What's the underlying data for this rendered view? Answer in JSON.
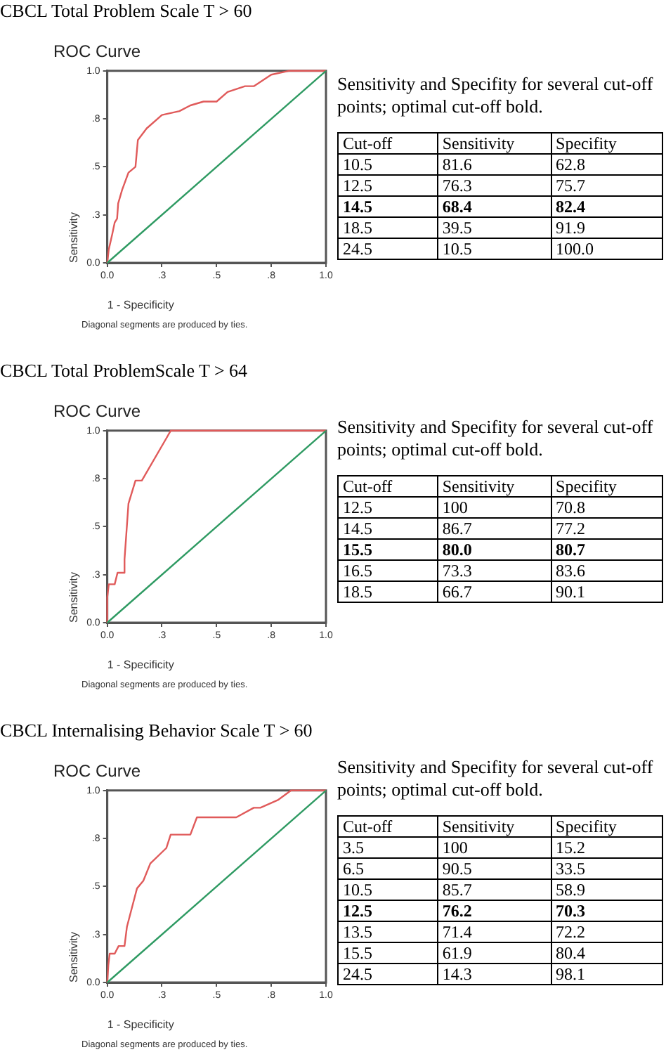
{
  "chart_data": [
    {
      "type": "line",
      "title": "CBCL Total Problem Scale T > 60",
      "subtitle": "ROC Curve",
      "xlabel": "1 - Specificity",
      "ylabel": "Sensitivity",
      "xlim": [
        0,
        1
      ],
      "ylim": [
        0,
        1
      ],
      "xticks": [
        {
          "value": 0,
          "label": "0.0"
        },
        {
          "value": 0.25,
          "label": ".3"
        },
        {
          "value": 0.5,
          "label": ".5"
        },
        {
          "value": 0.75,
          "label": ".8"
        },
        {
          "value": 1,
          "label": "1.0"
        }
      ],
      "yticks": [
        {
          "value": 0,
          "label": "0.0"
        },
        {
          "value": 0.25,
          "label": ".3"
        },
        {
          "value": 0.5,
          "label": ".5"
        },
        {
          "value": 0.75,
          "label": ".8"
        },
        {
          "value": 1,
          "label": "1.0"
        }
      ],
      "grid": false,
      "legend": false,
      "marker": "none",
      "line_style": "solid",
      "series": [
        {
          "color": "#e05a5a",
          "x": [
            0,
            0.007,
            0.023,
            0.034,
            0.045,
            0.05,
            0.068,
            0.097,
            0.129,
            0.14,
            0.18,
            0.25,
            0.33,
            0.38,
            0.44,
            0.5,
            0.55,
            0.63,
            0.67,
            0.75,
            0.83,
            1
          ],
          "values": [
            0,
            0.07,
            0.15,
            0.21,
            0.23,
            0.31,
            0.38,
            0.47,
            0.5,
            0.64,
            0.7,
            0.77,
            0.79,
            0.82,
            0.84,
            0.84,
            0.89,
            0.92,
            0.92,
            0.98,
            1,
            1
          ]
        },
        {
          "color": "#2e9a62",
          "x": [
            0,
            1
          ],
          "values": [
            0,
            1
          ]
        }
      ],
      "annotations": [
        "Diagonal segments are produced by ties.",
        "Sensitivity and Specifity for several cut-off points; optimal  cut-off bold.",
        "Cut-off",
        "Sensitivity",
        "Specifity",
        "10.5",
        "81.6",
        "62.8",
        "12.5",
        "76.3",
        "75.7",
        "14.5",
        "68.4",
        "82.4",
        "18.5",
        "39.5",
        "91.9",
        "24.5",
        "10.5",
        "100.0"
      ]
    },
    {
      "type": "line",
      "title": "CBCL Total ProblemScale T > 64",
      "subtitle": "ROC Curve",
      "xlabel": "1 - Specificity",
      "ylabel": "Sensitivity",
      "xlim": [
        0,
        1
      ],
      "ylim": [
        0,
        1
      ],
      "xticks": [
        {
          "value": 0,
          "label": "0.0"
        },
        {
          "value": 0.25,
          "label": ".3"
        },
        {
          "value": 0.5,
          "label": ".5"
        },
        {
          "value": 0.75,
          "label": ".8"
        },
        {
          "value": 1,
          "label": "1.0"
        }
      ],
      "yticks": [
        {
          "value": 0,
          "label": "0.0"
        },
        {
          "value": 0.25,
          "label": ".3"
        },
        {
          "value": 0.5,
          "label": ".5"
        },
        {
          "value": 0.75,
          "label": ".8"
        },
        {
          "value": 1,
          "label": "1.0"
        }
      ],
      "grid": false,
      "legend": false,
      "marker": "none",
      "line_style": "solid",
      "series": [
        {
          "color": "#e05a5a",
          "x": [
            0,
            0,
            0.007,
            0.034,
            0.047,
            0.075,
            0.079,
            0.097,
            0.129,
            0.158,
            0.27,
            0.29,
            1
          ],
          "values": [
            0,
            0.13,
            0.2,
            0.2,
            0.26,
            0.26,
            0.33,
            0.62,
            0.74,
            0.74,
            0.96,
            1,
            1
          ]
        },
        {
          "color": "#2e9a62",
          "x": [
            0,
            1
          ],
          "values": [
            0,
            1
          ]
        }
      ],
      "annotations": [
        "Diagonal segments are produced by ties.",
        "Sensitivity and Specifity for several cut-off points; optimal  cut-off bold.",
        "Cut-off",
        "Sensitivity",
        "Specifity",
        "12.5",
        "100",
        "70.8",
        "14.5",
        "86.7",
        "77.2",
        "15.5",
        "80.0",
        "80.7",
        "16.5",
        "73.3",
        "83.6",
        "18.5",
        "66.7",
        "90.1"
      ]
    },
    {
      "type": "line",
      "title": "CBCL Internalising Behavior Scale  T > 60",
      "subtitle": "ROC Curve",
      "xlabel": "1 - Specificity",
      "ylabel": "Sensitivity",
      "xlim": [
        0,
        1
      ],
      "ylim": [
        0,
        1
      ],
      "xticks": [
        {
          "value": 0,
          "label": "0.0"
        },
        {
          "value": 0.25,
          "label": ".3"
        },
        {
          "value": 0.5,
          "label": ".5"
        },
        {
          "value": 0.75,
          "label": ".8"
        },
        {
          "value": 1,
          "label": "1.0"
        }
      ],
      "yticks": [
        {
          "value": 0,
          "label": "0.0"
        },
        {
          "value": 0.25,
          "label": ".3"
        },
        {
          "value": 0.5,
          "label": ".5"
        },
        {
          "value": 0.75,
          "label": ".8"
        },
        {
          "value": 1,
          "label": "1.0"
        }
      ],
      "grid": false,
      "legend": false,
      "marker": "none",
      "line_style": "solid",
      "series": [
        {
          "color": "#e05a5a",
          "x": [
            0,
            0.005,
            0.011,
            0.034,
            0.052,
            0.079,
            0.09,
            0.136,
            0.165,
            0.197,
            0.27,
            0.29,
            0.38,
            0.41,
            0.59,
            0.67,
            0.7,
            0.78,
            0.84,
            1
          ],
          "values": [
            0,
            0.09,
            0.15,
            0.15,
            0.19,
            0.19,
            0.29,
            0.49,
            0.53,
            0.62,
            0.7,
            0.77,
            0.77,
            0.86,
            0.86,
            0.91,
            0.91,
            0.95,
            1,
            1
          ]
        },
        {
          "color": "#2e9a62",
          "x": [
            0,
            1
          ],
          "values": [
            0,
            1
          ]
        }
      ],
      "annotations": [
        "Diagonal segments are produced by ties.",
        "Sensitivity and Specifity for several cut-off points; optimal  cut-off bold.",
        "Cut-off",
        "Sensitivity",
        "Specifity",
        "3.5",
        "100",
        "15.2",
        "6.5",
        "90.5",
        "33.5",
        "10.5",
        "85.7",
        "58.9",
        "12.5",
        "76.2",
        "70.3",
        "13.5",
        "71.4",
        "72.2",
        "15.5",
        "61.9",
        "80.4",
        "24.5",
        "14.3",
        "98.1"
      ]
    }
  ]
}
